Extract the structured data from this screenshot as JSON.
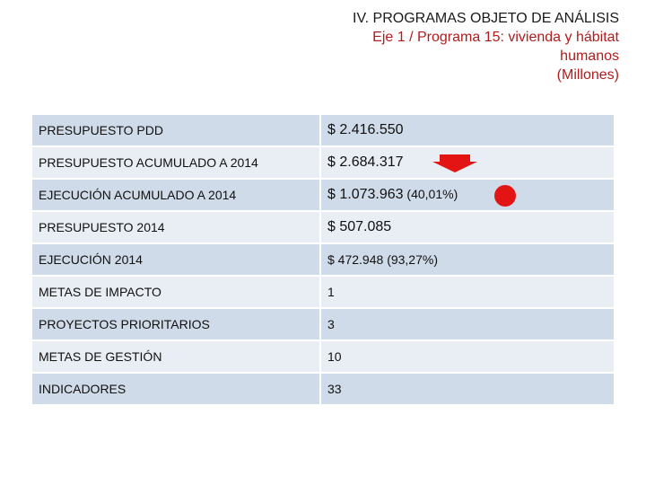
{
  "header": {
    "line1": "IV. PROGRAMAS OBJETO DE ANÁLISIS",
    "line2": "Eje 1 / Programa 15: vivienda y hábitat",
    "line3": "humanos",
    "line4": "(Millones)"
  },
  "rows": [
    {
      "label": "PRESUPUESTO PDD",
      "value": "$ 2.416.550",
      "note": ""
    },
    {
      "label": "PRESUPUESTO  ACUMULADO A 2014",
      "value": "$ 2.684.317",
      "note": ""
    },
    {
      "label": "EJECUCIÓN ACUMULADO A 2014",
      "value": "$ 1.073.963",
      "note": "(40,01%)"
    },
    {
      "label": "PRESUPUESTO 2014",
      "value": "$ 507.085",
      "note": ""
    },
    {
      "label": "EJECUCIÓN 2014",
      "value": "$ 472.948",
      "note": "  (93,27%)"
    },
    {
      "label": "METAS DE IMPACTO",
      "value": "1",
      "note": ""
    },
    {
      "label": "PROYECTOS PRIORITARIOS",
      "value": "3",
      "note": ""
    },
    {
      "label": "METAS DE GESTIÓN",
      "value": "10",
      "note": ""
    },
    {
      "label": "INDICADORES",
      "value": "33",
      "note": ""
    }
  ],
  "indicators": {
    "arrow_icon": "down-arrow-icon",
    "arrow_color": "#e31414",
    "dot_icon": "red-circle-icon",
    "dot_color": "#e31414"
  }
}
